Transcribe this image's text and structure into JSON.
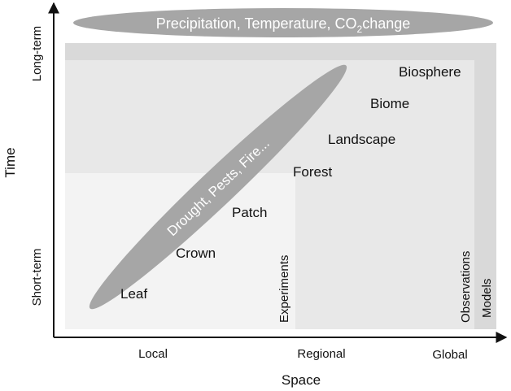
{
  "banner": {
    "text_main": "Precipitation, Temperature, CO",
    "text_sub": "2",
    "text_tail": "change"
  },
  "disturbance_label": "Drought, Pests, Fire...",
  "scales": {
    "leaf": "Leaf",
    "crown": "Crown",
    "patch": "Patch",
    "forest": "Forest",
    "landscape": "Landscape",
    "biome": "Biome",
    "biosphere": "Biosphere"
  },
  "methods": {
    "experiments": "Experiments",
    "observations": "Observations",
    "models": "Models"
  },
  "axes": {
    "y_title": "Time",
    "y_top": "Long-term",
    "y_bottom": "Short-term",
    "x_title": "Space",
    "x_left": "Local",
    "x_mid": "Regional",
    "x_right": "Global"
  },
  "colors": {
    "models_fill": "#d9d9d9",
    "observations_fill": "#e8e8e8",
    "experiments_fill": "#f3f3f3",
    "ellipse_fill": "#a6a6a6",
    "text_light": "#ffffff",
    "text_dark": "#111111"
  }
}
